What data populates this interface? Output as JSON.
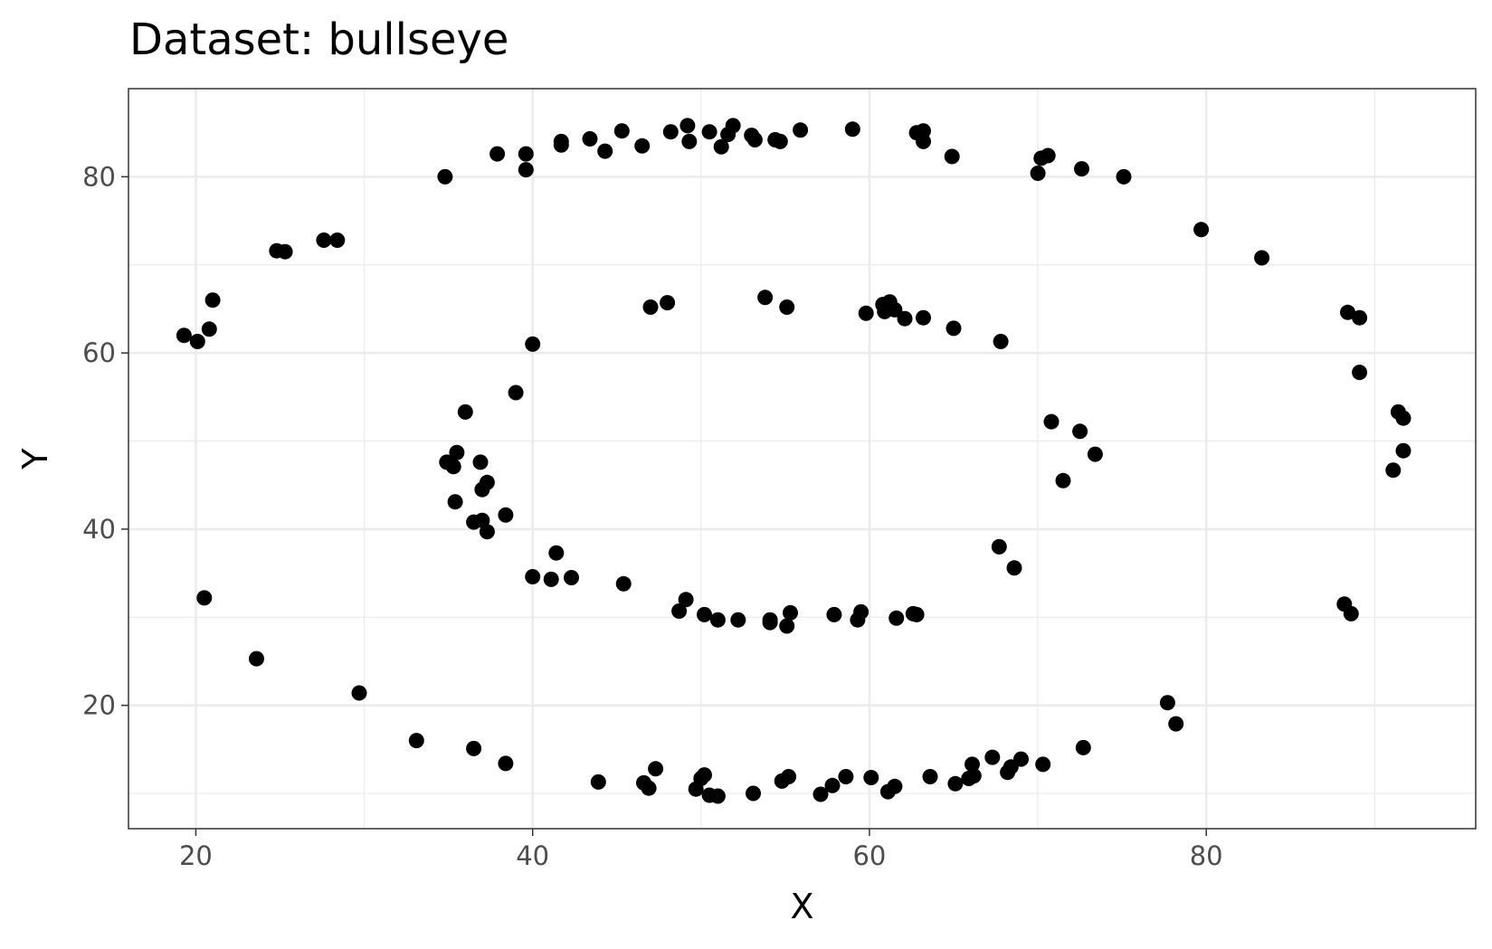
{
  "chart_data": {
    "type": "scatter",
    "title": "Dataset: bullseye",
    "xlabel": "X",
    "ylabel": "Y",
    "xlim": [
      16,
      96
    ],
    "ylim": [
      6,
      90
    ],
    "xticks": [
      20,
      40,
      60,
      80
    ],
    "yticks": [
      20,
      40,
      60,
      80
    ],
    "xtick_labels": [
      "20",
      "40",
      "60",
      "80"
    ],
    "ytick_labels": [
      "20",
      "40",
      "60",
      "80"
    ],
    "grid": true,
    "theme": "bw",
    "point_color": "#000000",
    "points": [
      [
        19.3,
        62.0
      ],
      [
        20.1,
        61.3
      ],
      [
        20.8,
        62.7
      ],
      [
        21.0,
        66.0
      ],
      [
        20.5,
        32.2
      ],
      [
        23.6,
        25.3
      ],
      [
        24.8,
        71.6
      ],
      [
        25.3,
        71.5
      ],
      [
        27.6,
        72.8
      ],
      [
        28.4,
        72.8
      ],
      [
        29.7,
        21.4
      ],
      [
        33.1,
        16.0
      ],
      [
        34.8,
        80.0
      ],
      [
        34.9,
        47.6
      ],
      [
        35.3,
        47.1
      ],
      [
        35.5,
        48.7
      ],
      [
        35.4,
        43.1
      ],
      [
        36.0,
        53.3
      ],
      [
        36.5,
        40.8
      ],
      [
        36.5,
        15.1
      ],
      [
        36.9,
        47.6
      ],
      [
        37.0,
        44.5
      ],
      [
        37.0,
        41.0
      ],
      [
        37.3,
        45.3
      ],
      [
        37.3,
        39.7
      ],
      [
        37.9,
        82.6
      ],
      [
        38.4,
        41.6
      ],
      [
        38.4,
        13.4
      ],
      [
        39.0,
        55.5
      ],
      [
        39.6,
        82.6
      ],
      [
        39.6,
        80.8
      ],
      [
        40.0,
        61.0
      ],
      [
        40.0,
        34.6
      ],
      [
        41.1,
        34.3
      ],
      [
        41.4,
        37.3
      ],
      [
        41.7,
        84.0
      ],
      [
        41.7,
        83.6
      ],
      [
        42.3,
        34.5
      ],
      [
        43.4,
        84.3
      ],
      [
        43.9,
        11.3
      ],
      [
        44.3,
        82.9
      ],
      [
        45.3,
        85.2
      ],
      [
        45.4,
        33.8
      ],
      [
        46.5,
        83.5
      ],
      [
        46.6,
        11.2
      ],
      [
        46.9,
        10.6
      ],
      [
        47.0,
        65.2
      ],
      [
        47.3,
        12.8
      ],
      [
        48.0,
        65.7
      ],
      [
        48.2,
        85.1
      ],
      [
        48.7,
        30.7
      ],
      [
        49.1,
        32.0
      ],
      [
        49.2,
        85.8
      ],
      [
        49.3,
        84.0
      ],
      [
        49.7,
        10.5
      ],
      [
        50.0,
        11.7
      ],
      [
        50.2,
        12.1
      ],
      [
        50.2,
        30.3
      ],
      [
        50.5,
        85.1
      ],
      [
        50.5,
        9.8
      ],
      [
        51.0,
        29.7
      ],
      [
        51.0,
        9.7
      ],
      [
        51.2,
        83.4
      ],
      [
        51.6,
        84.8
      ],
      [
        51.9,
        85.8
      ],
      [
        52.2,
        29.7
      ],
      [
        53.0,
        84.7
      ],
      [
        53.1,
        10.0
      ],
      [
        53.2,
        84.2
      ],
      [
        53.8,
        66.3
      ],
      [
        54.1,
        29.4
      ],
      [
        54.1,
        29.7
      ],
      [
        54.4,
        84.2
      ],
      [
        54.7,
        84.0
      ],
      [
        54.8,
        11.4
      ],
      [
        55.1,
        65.2
      ],
      [
        55.1,
        29.0
      ],
      [
        55.2,
        11.9
      ],
      [
        55.3,
        30.5
      ],
      [
        55.9,
        85.3
      ],
      [
        57.1,
        9.9
      ],
      [
        57.8,
        10.9
      ],
      [
        57.9,
        30.3
      ],
      [
        58.6,
        11.9
      ],
      [
        59.0,
        85.4
      ],
      [
        59.3,
        29.7
      ],
      [
        59.5,
        30.6
      ],
      [
        59.8,
        64.5
      ],
      [
        60.1,
        11.8
      ],
      [
        60.8,
        65.5
      ],
      [
        60.9,
        64.7
      ],
      [
        61.1,
        10.2
      ],
      [
        61.2,
        65.8
      ],
      [
        61.5,
        64.9
      ],
      [
        61.5,
        10.8
      ],
      [
        61.6,
        29.9
      ],
      [
        62.1,
        63.9
      ],
      [
        62.6,
        30.4
      ],
      [
        62.8,
        85.0
      ],
      [
        62.8,
        30.3
      ],
      [
        63.2,
        85.2
      ],
      [
        63.2,
        64.0
      ],
      [
        63.2,
        84.0
      ],
      [
        63.6,
        11.9
      ],
      [
        64.9,
        82.3
      ],
      [
        65.0,
        62.8
      ],
      [
        65.1,
        11.1
      ],
      [
        65.9,
        11.7
      ],
      [
        66.1,
        13.3
      ],
      [
        66.2,
        12.0
      ],
      [
        67.3,
        14.1
      ],
      [
        67.7,
        38.0
      ],
      [
        67.8,
        61.3
      ],
      [
        68.2,
        12.4
      ],
      [
        68.4,
        13.0
      ],
      [
        68.6,
        35.6
      ],
      [
        69.0,
        13.9
      ],
      [
        70.0,
        80.4
      ],
      [
        70.2,
        82.1
      ],
      [
        70.3,
        13.3
      ],
      [
        70.6,
        82.4
      ],
      [
        70.8,
        52.2
      ],
      [
        71.5,
        45.5
      ],
      [
        72.5,
        51.1
      ],
      [
        72.6,
        80.9
      ],
      [
        72.7,
        15.2
      ],
      [
        73.4,
        48.5
      ],
      [
        75.1,
        80.0
      ],
      [
        77.7,
        20.3
      ],
      [
        78.2,
        17.9
      ],
      [
        79.7,
        74.0
      ],
      [
        83.3,
        70.8
      ],
      [
        88.2,
        31.5
      ],
      [
        88.4,
        64.6
      ],
      [
        88.6,
        30.4
      ],
      [
        89.1,
        64.0
      ],
      [
        89.1,
        57.8
      ],
      [
        91.1,
        46.7
      ],
      [
        91.4,
        53.3
      ],
      [
        91.7,
        52.6
      ],
      [
        91.7,
        48.9
      ]
    ]
  }
}
